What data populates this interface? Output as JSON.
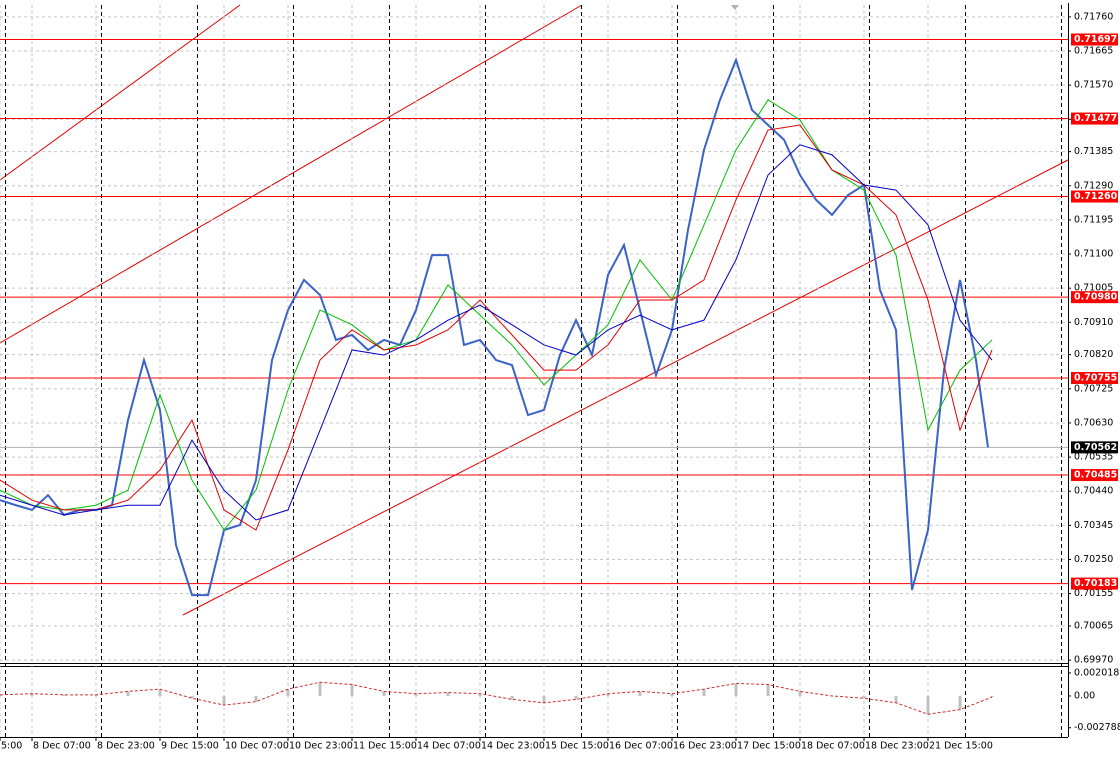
{
  "chart_data": [
    {
      "type": "line",
      "xlim": [
        0,
        267
      ],
      "xticks": [
        {
          "value": 0,
          "label": "5:00"
        },
        {
          "value": 8,
          "label": "8 Dec 07:00"
        },
        {
          "value": 24,
          "label": "8 Dec 23:00"
        },
        {
          "value": 40,
          "label": "9 Dec 15:00"
        },
        {
          "value": 56,
          "label": "10 Dec 07:00"
        },
        {
          "value": 72,
          "label": "10 Dec 23:00"
        },
        {
          "value": 88,
          "label": "11 Dec 15:00"
        },
        {
          "value": 104,
          "label": "14 Dec 07:00"
        },
        {
          "value": 120,
          "label": "14 Dec 23:00"
        },
        {
          "value": 136,
          "label": "15 Dec 15:00"
        },
        {
          "value": 152,
          "label": "16 Dec 07:00"
        },
        {
          "value": 168,
          "label": "16 Dec 23:00"
        },
        {
          "value": 184,
          "label": "17 Dec 15:00"
        },
        {
          "value": 200,
          "label": "18 Dec 07:00"
        },
        {
          "value": 216,
          "label": "18 Dec 23:00"
        },
        {
          "value": 232,
          "label": "21 Dec 15:00"
        }
      ],
      "ylim": [
        0.69962,
        0.71793
      ],
      "yticks": [
        {
          "value": 0.7176,
          "label": "0.71760"
        },
        {
          "value": 0.71665,
          "label": "0.71665"
        },
        {
          "value": 0.7157,
          "label": "0.71570"
        },
        {
          "value": 0.71475,
          "label": "0.71475"
        },
        {
          "value": 0.71385,
          "label": "0.71385"
        },
        {
          "value": 0.7129,
          "label": "0.71290"
        },
        {
          "value": 0.71195,
          "label": "0.71195"
        },
        {
          "value": 0.711,
          "label": "0.71100"
        },
        {
          "value": 0.71005,
          "label": "0.71005"
        },
        {
          "value": 0.7091,
          "label": "0.70910"
        },
        {
          "value": 0.7082,
          "label": "0.70820"
        },
        {
          "value": 0.70725,
          "label": "0.70725"
        },
        {
          "value": 0.7063,
          "label": "0.70630"
        },
        {
          "value": 0.70535,
          "label": "0.70535"
        },
        {
          "value": 0.7044,
          "label": "0.70440"
        },
        {
          "value": 0.70345,
          "label": "0.70345"
        },
        {
          "value": 0.7025,
          "label": "0.70250"
        },
        {
          "value": 0.70155,
          "label": "0.70155"
        },
        {
          "value": 0.70065,
          "label": "0.70065"
        },
        {
          "value": 0.6997,
          "label": "0.69970"
        }
      ],
      "grid": true,
      "series": [
        {
          "color": "#3a62c8",
          "width": 2,
          "x": [
            0,
            4,
            8,
            12,
            16,
            20,
            24,
            28,
            32,
            36,
            40,
            44,
            48,
            52,
            56,
            60,
            64,
            68,
            72,
            76,
            80,
            84,
            88,
            92,
            96,
            100,
            104,
            108,
            112,
            116,
            120,
            124,
            128,
            132,
            136,
            140,
            144,
            148,
            152,
            156,
            160,
            164,
            168,
            172,
            176,
            180,
            184,
            188,
            192,
            196,
            200,
            204,
            208,
            212,
            216,
            220,
            224,
            228,
            232,
            236,
            240,
            244,
            247
          ],
          "values": [
            0.70415,
            0.70401,
            0.70388,
            0.70429,
            0.70374,
            0.70388,
            0.70388,
            0.70401,
            0.70638,
            0.70805,
            0.70666,
            0.7029,
            0.70151,
            0.70151,
            0.70332,
            0.70346,
            0.70471,
            0.70805,
            0.70944,
            0.71028,
            0.70986,
            0.70861,
            0.70875,
            0.70833,
            0.70861,
            0.70847,
            0.70944,
            0.71097,
            0.71097,
            0.70847,
            0.70861,
            0.70805,
            0.70791,
            0.70652,
            0.70666,
            0.70819,
            0.70916,
            0.70819,
            0.71042,
            0.71125,
            0.70944,
            0.70763,
            0.70889,
            0.71167,
            0.7139,
            0.71529,
            0.7164,
            0.71501,
            0.71459,
            0.71418,
            0.7132,
            0.71251,
            0.71209,
            0.71264,
            0.71292,
            0.71,
            0.70889,
            0.70165,
            0.70332,
            0.70777,
            0.71028,
            0.70805,
            0.70562
          ]
        },
        {
          "color": "#00c000",
          "width": 1,
          "x": [
            0,
            8,
            16,
            24,
            32,
            40,
            48,
            56,
            64,
            72,
            80,
            88,
            96,
            104,
            112,
            120,
            128,
            136,
            144,
            152,
            160,
            168,
            176,
            184,
            192,
            200,
            208,
            216,
            224,
            232,
            240,
            248
          ],
          "values": [
            0.70443,
            0.70401,
            0.70388,
            0.70401,
            0.70443,
            0.70708,
            0.70471,
            0.70332,
            0.70443,
            0.70722,
            0.70944,
            0.70903,
            0.70833,
            0.70861,
            0.71014,
            0.7093,
            0.70847,
            0.70736,
            0.70819,
            0.70903,
            0.71084,
            0.70972,
            0.71181,
            0.7139,
            0.71529,
            0.71473,
            0.71334,
            0.71278,
            0.71097,
            0.7061,
            0.70777,
            0.70861
          ]
        },
        {
          "color": "#e00000",
          "width": 1,
          "x": [
            0,
            8,
            16,
            24,
            32,
            40,
            48,
            56,
            64,
            72,
            80,
            88,
            96,
            104,
            112,
            120,
            128,
            136,
            144,
            152,
            160,
            168,
            176,
            184,
            192,
            200,
            208,
            216,
            224,
            232,
            240,
            248
          ],
          "values": [
            0.70471,
            0.70415,
            0.70388,
            0.70388,
            0.70415,
            0.70499,
            0.70638,
            0.70388,
            0.70332,
            0.70555,
            0.70805,
            0.70889,
            0.70833,
            0.70847,
            0.70889,
            0.70972,
            0.70875,
            0.70777,
            0.70777,
            0.70847,
            0.70972,
            0.70972,
            0.71028,
            0.71251,
            0.71445,
            0.71459,
            0.71334,
            0.71292,
            0.71209,
            0.70972,
            0.7061,
            0.70833
          ]
        },
        {
          "color": "#0000c8",
          "width": 1,
          "x": [
            0,
            8,
            16,
            24,
            32,
            40,
            48,
            56,
            64,
            72,
            80,
            88,
            96,
            104,
            112,
            120,
            128,
            136,
            144,
            152,
            160,
            168,
            176,
            184,
            192,
            200,
            208,
            216,
            224,
            232,
            240,
            248
          ],
          "values": [
            0.70429,
            0.70401,
            0.70374,
            0.70388,
            0.70401,
            0.70401,
            0.70582,
            0.70443,
            0.7036,
            0.70388,
            0.7061,
            0.70833,
            0.70819,
            0.70861,
            0.70916,
            0.70958,
            0.70903,
            0.70847,
            0.70819,
            0.70889,
            0.7093,
            0.70889,
            0.70916,
            0.71084,
            0.7132,
            0.71404,
            0.71376,
            0.71292,
            0.71278,
            0.71181,
            0.70916,
            0.70805
          ]
        }
      ],
      "levels": [
        {
          "value": 0.71697,
          "label": "0.71697"
        },
        {
          "value": 0.71477,
          "label": "0.71477"
        },
        {
          "value": 0.7126,
          "label": "0.71260"
        },
        {
          "value": 0.7098,
          "label": "0.70980"
        },
        {
          "value": 0.70755,
          "label": "0.70755"
        },
        {
          "value": 0.70485,
          "label": "0.70485"
        },
        {
          "value": 0.70183,
          "label": "0.70183"
        }
      ],
      "level_color": "#ff0000",
      "current_price": 0.70562
    },
    {
      "type": "bar",
      "xlim": [
        0,
        267
      ],
      "ylim": [
        -0.0036,
        0.00254
      ],
      "yticks": [
        0.002018,
        {
          "value": 0,
          "label": "0.00"
        },
        -0.002788
      ],
      "color": "#c0c0c0",
      "line_color": "#d03030",
      "x": [
        0,
        8,
        16,
        24,
        32,
        40,
        48,
        56,
        64,
        72,
        80,
        88,
        96,
        104,
        112,
        120,
        128,
        136,
        144,
        152,
        160,
        168,
        176,
        184,
        192,
        200,
        208,
        216,
        224,
        232,
        240,
        248
      ],
      "values": [
        0.0001,
        0.0002,
        0.0001,
        0.0001,
        0.0004,
        0.0006,
        -0.0002,
        -0.0008,
        -0.0005,
        0.0006,
        0.0012,
        0.001,
        0.0004,
        0.0002,
        0.0003,
        0.0002,
        -0.0003,
        -0.0006,
        -0.0003,
        0.0002,
        0.0004,
        0.0002,
        0.0006,
        0.0011,
        0.001,
        0.0004,
        0,
        -0.0002,
        -0.0006,
        -0.0016,
        -0.0012,
        -0.0001
      ]
    }
  ]
}
